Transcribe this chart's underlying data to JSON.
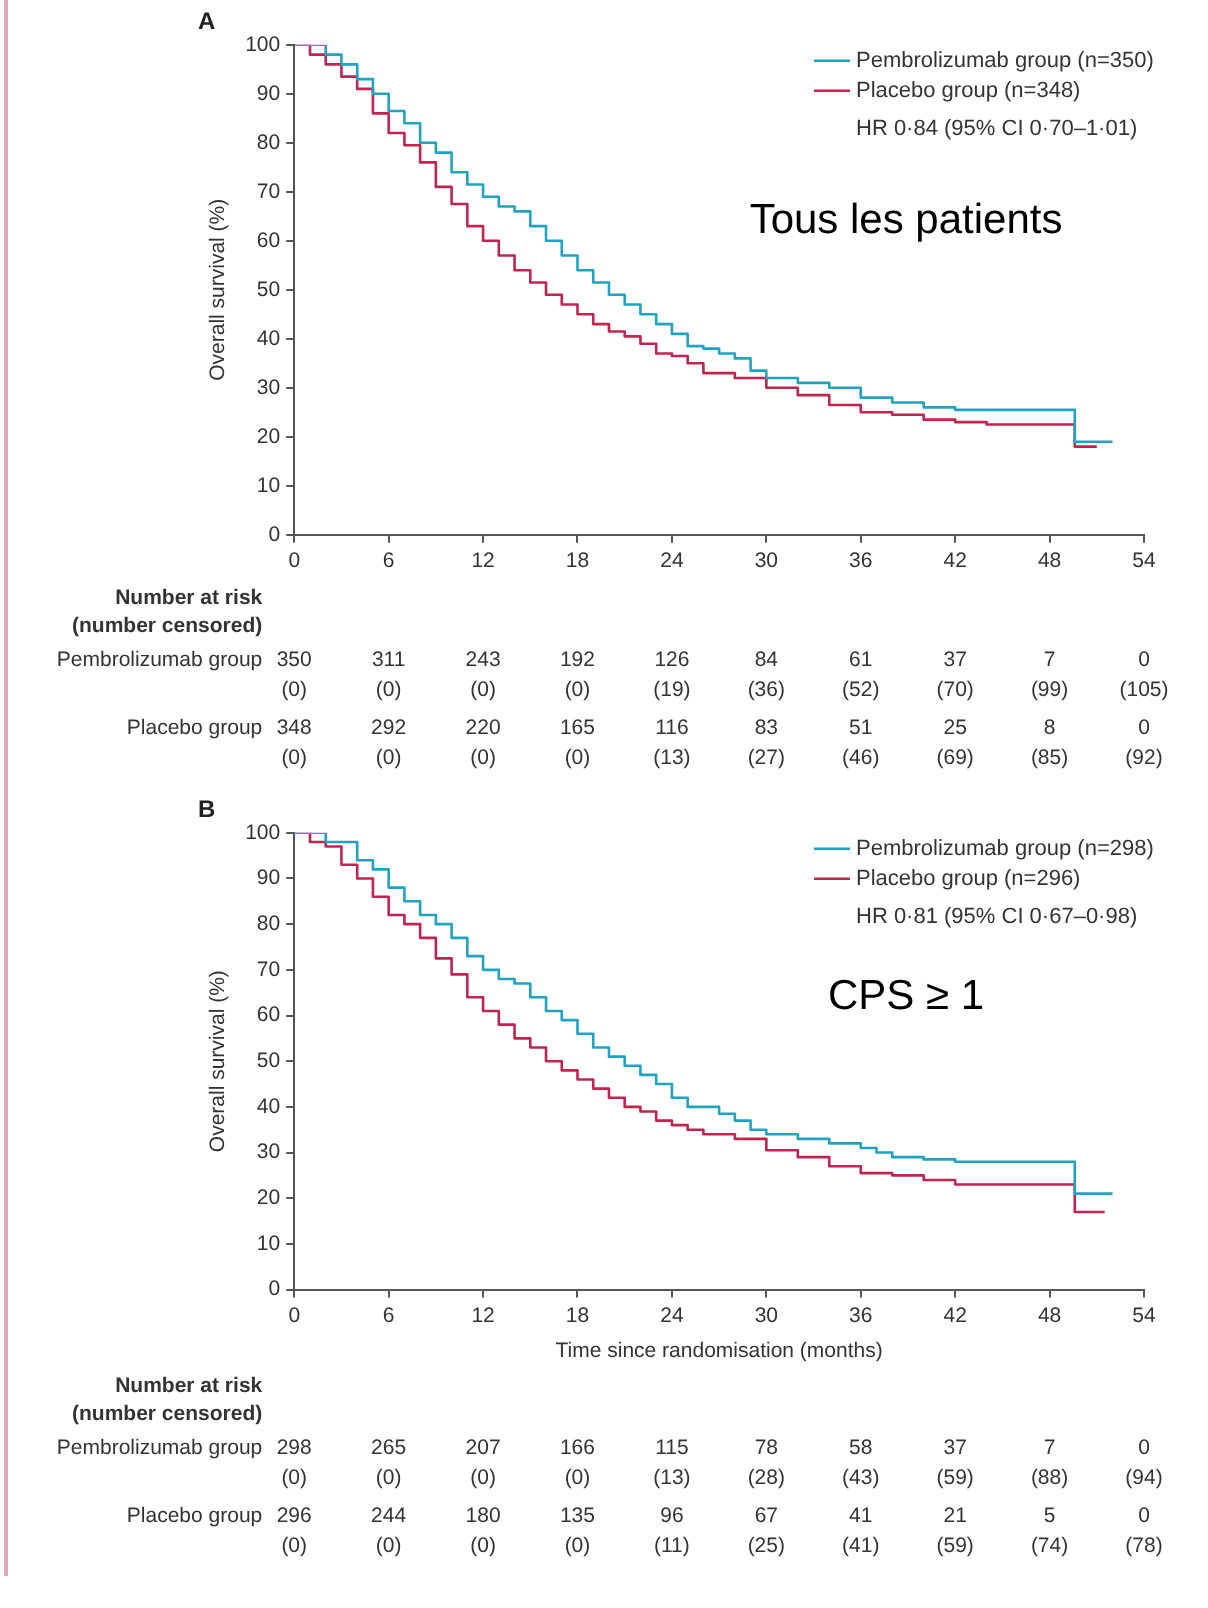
{
  "chart_data": [
    {
      "type": "step",
      "title": "A",
      "ylabel": "Overall survival (%)",
      "xlim": [
        0,
        54
      ],
      "xticks": [
        0,
        6,
        12,
        18,
        24,
        30,
        36,
        42,
        48,
        54
      ],
      "ylim": [
        0,
        100
      ],
      "yticks": [
        0,
        10,
        20,
        30,
        40,
        50,
        60,
        70,
        80,
        90,
        100
      ],
      "grid": false,
      "legend": "top right",
      "series": [
        {
          "name": "Pembrolizumab group (n=350)",
          "color": "#1fa3c0",
          "x": [
            0,
            2,
            3,
            4,
            5,
            6,
            7,
            8,
            9,
            10,
            11,
            12,
            13,
            14,
            15,
            16,
            17,
            18,
            19,
            20,
            21,
            22,
            23,
            24,
            25,
            26,
            27,
            28,
            29,
            30,
            32,
            34,
            36,
            38,
            40,
            42,
            46,
            49.6,
            49.6,
            52
          ],
          "values": [
            100,
            98,
            96,
            93,
            90,
            86.5,
            84,
            80,
            78,
            74,
            71.5,
            69,
            67,
            66,
            63,
            60,
            57,
            54,
            51.5,
            49,
            47,
            45,
            43,
            41,
            38.5,
            38,
            37,
            36,
            33.5,
            32,
            31,
            30,
            28,
            27,
            26,
            25.5,
            25.5,
            25.5,
            19,
            19
          ]
        },
        {
          "name": "Placebo group (n=348)",
          "color": "#c0244f",
          "x": [
            0,
            1,
            2,
            3,
            4,
            5,
            6,
            7,
            8,
            9,
            10,
            11,
            12,
            13,
            14,
            15,
            16,
            17,
            18,
            19,
            20,
            21,
            22,
            23,
            24,
            25,
            26,
            28,
            30,
            32,
            34,
            36,
            38,
            40,
            42,
            44,
            49.6,
            49.6,
            51
          ],
          "values": [
            100,
            98,
            96,
            93.5,
            91,
            86,
            82,
            79.5,
            76,
            71,
            67.5,
            63,
            60,
            57,
            54,
            51.5,
            49,
            47,
            45,
            43,
            41.5,
            40.5,
            39,
            37,
            36.5,
            35,
            33,
            32,
            30,
            28.5,
            26.5,
            25,
            24.5,
            23.5,
            23,
            22.5,
            22.5,
            18,
            18
          ]
        }
      ],
      "annotations": [
        "HR 0·84 (95% CI 0·70–1·01)",
        "Tous les patients",
        "Number at risk (number censored)",
        "Pembrolizumab group",
        "350",
        "(0)",
        "311",
        "(0)",
        "243",
        "(0)",
        "192",
        "(0)",
        "126",
        "(19)",
        "84",
        "(36)",
        "61",
        "(52)",
        "37",
        "(70)",
        "7",
        "(99)",
        "0",
        "(105)",
        "Placebo group",
        "348",
        "(0)",
        "292",
        "(0)",
        "220",
        "(0)",
        "165",
        "(0)",
        "116",
        "(13)",
        "83",
        "(27)",
        "51",
        "(46)",
        "25",
        "(69)",
        "8",
        "(85)",
        "0",
        "(92)"
      ]
    },
    {
      "type": "step",
      "title": "B",
      "xlabel": "Time since randomisation (months)",
      "ylabel": "Overall survival (%)",
      "xlim": [
        0,
        54
      ],
      "xticks": [
        0,
        6,
        12,
        18,
        24,
        30,
        36,
        42,
        48,
        54
      ],
      "ylim": [
        0,
        100
      ],
      "yticks": [
        0,
        10,
        20,
        30,
        40,
        50,
        60,
        70,
        80,
        90,
        100
      ],
      "grid": false,
      "legend": "top right",
      "series": [
        {
          "name": "Pembrolizumab group (n=298)",
          "color": "#1fa3c0",
          "x": [
            0,
            2,
            4,
            5,
            6,
            7,
            8,
            9,
            10,
            11,
            12,
            13,
            14,
            15,
            16,
            17,
            18,
            19,
            20,
            21,
            22,
            23,
            24,
            25,
            26,
            27,
            28,
            29,
            30,
            32,
            34,
            36,
            37,
            38,
            40,
            42,
            49.6,
            49.6,
            52
          ],
          "values": [
            100,
            98,
            94,
            92,
            88,
            85,
            82,
            80,
            77,
            73,
            70,
            68,
            67,
            64,
            61,
            59,
            56,
            53,
            51,
            49,
            47,
            45,
            42,
            40,
            40,
            38.5,
            37,
            35,
            34,
            33,
            32,
            31,
            30,
            29,
            28.5,
            28,
            28,
            21,
            21
          ]
        },
        {
          "name": "Placebo group (n=296)",
          "color": "#c0244f",
          "x": [
            0,
            1,
            2,
            3,
            4,
            5,
            6,
            7,
            8,
            9,
            10,
            11,
            12,
            13,
            14,
            15,
            16,
            17,
            18,
            19,
            20,
            21,
            22,
            23,
            24,
            25,
            26,
            28,
            30,
            32,
            34,
            36,
            38,
            40,
            42,
            49.6,
            49.6,
            51.5
          ],
          "values": [
            100,
            98,
            97,
            93,
            90,
            86,
            82,
            80,
            77,
            72.5,
            69,
            64,
            61,
            58,
            55,
            53,
            50,
            48,
            46,
            44,
            42,
            40,
            39,
            37,
            36,
            35,
            34,
            33,
            30.5,
            29,
            27,
            25.5,
            25,
            24,
            23,
            22.5,
            17,
            17
          ]
        }
      ],
      "annotations": [
        "HR 0·81 (95% CI 0·67–0·98)",
        "CPS ≥ 1",
        "Number at risk (number censored)",
        "Pembrolizumab group",
        "298",
        "(0)",
        "265",
        "(0)",
        "207",
        "(0)",
        "166",
        "(0)",
        "115",
        "(13)",
        "78",
        "(28)",
        "58",
        "(43)",
        "37",
        "(59)",
        "7",
        "(88)",
        "0",
        "(94)",
        "Placebo group",
        "296",
        "(0)",
        "244",
        "(0)",
        "180",
        "(0)",
        "135",
        "(0)",
        "96",
        "(11)",
        "67",
        "(25)",
        "41",
        "(41)",
        "21",
        "(59)",
        "5",
        "(74)",
        "0",
        "(78)"
      ]
    }
  ]
}
